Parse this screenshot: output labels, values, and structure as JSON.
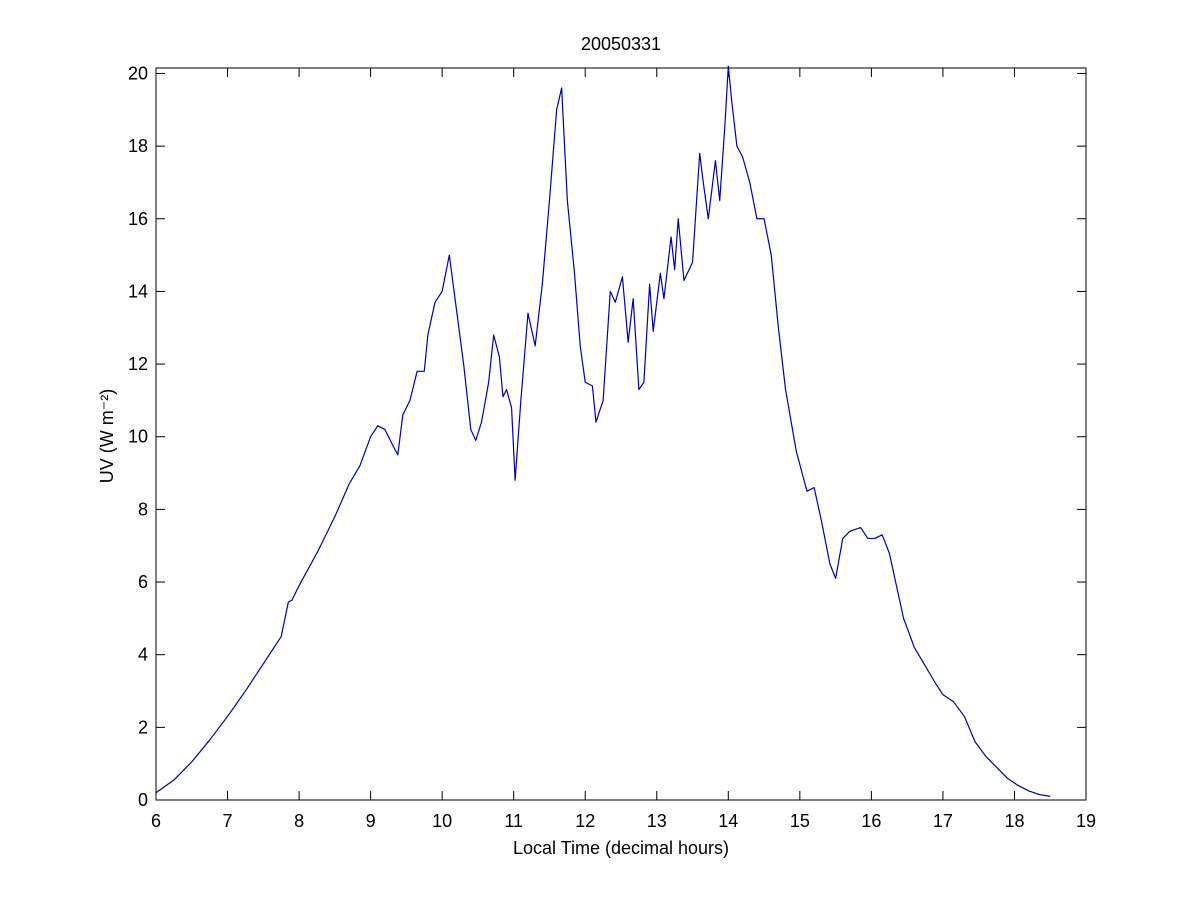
{
  "chart_data": {
    "type": "line",
    "title": "20050331",
    "x_label": "Local Time (decimal hours)",
    "y_label": "UV (W m⁻²)",
    "xlim": [
      6,
      19
    ],
    "ylim": [
      0,
      20.15
    ],
    "xticks": [
      6,
      7,
      8,
      9,
      10,
      11,
      12,
      13,
      14,
      15,
      16,
      17,
      18,
      19
    ],
    "yticks": [
      0,
      2,
      4,
      6,
      8,
      10,
      12,
      14,
      16,
      18,
      20
    ],
    "grid": false,
    "series": [
      {
        "color": "#0000aa",
        "x": [
          6.0,
          6.25,
          6.5,
          6.75,
          7.0,
          7.25,
          7.5,
          7.75,
          7.85,
          7.9,
          8.0,
          8.25,
          8.5,
          8.7,
          8.85,
          9.0,
          9.1,
          9.2,
          9.3,
          9.38,
          9.45,
          9.55,
          9.65,
          9.75,
          9.8,
          9.9,
          10.0,
          10.1,
          10.2,
          10.3,
          10.4,
          10.47,
          10.55,
          10.65,
          10.72,
          10.8,
          10.85,
          10.9,
          10.97,
          11.02,
          11.1,
          11.2,
          11.3,
          11.4,
          11.5,
          11.6,
          11.67,
          11.75,
          11.85,
          11.93,
          12.0,
          12.1,
          12.15,
          12.25,
          12.35,
          12.42,
          12.52,
          12.6,
          12.67,
          12.75,
          12.82,
          12.9,
          12.95,
          13.05,
          13.1,
          13.2,
          13.25,
          13.3,
          13.38,
          13.5,
          13.6,
          13.65,
          13.72,
          13.82,
          13.88,
          13.95,
          14.0,
          14.05,
          14.12,
          14.2,
          14.3,
          14.4,
          14.5,
          14.6,
          14.7,
          14.8,
          14.95,
          15.1,
          15.2,
          15.3,
          15.42,
          15.5,
          15.6,
          15.7,
          15.85,
          15.95,
          16.05,
          16.15,
          16.25,
          16.45,
          16.6,
          16.75,
          16.9,
          17.0,
          17.15,
          17.3,
          17.45,
          17.6,
          17.75,
          17.9,
          18.05,
          18.2,
          18.35,
          18.5
        ],
        "values": [
          0.2,
          0.55,
          1.05,
          1.65,
          2.3,
          3.0,
          3.75,
          4.5,
          5.45,
          5.5,
          5.9,
          6.8,
          7.8,
          8.7,
          9.2,
          10.0,
          10.3,
          10.2,
          9.8,
          9.5,
          10.6,
          11.0,
          11.8,
          11.8,
          12.8,
          13.7,
          14.0,
          15.0,
          13.5,
          12.0,
          10.2,
          9.9,
          10.4,
          11.5,
          12.8,
          12.2,
          11.1,
          11.3,
          10.8,
          8.8,
          11.0,
          13.4,
          12.5,
          14.2,
          16.5,
          19.0,
          19.6,
          16.5,
          14.5,
          12.5,
          11.5,
          11.4,
          10.4,
          11.0,
          14.0,
          13.7,
          14.4,
          12.6,
          13.8,
          11.3,
          11.5,
          14.2,
          12.9,
          14.5,
          13.8,
          15.5,
          14.6,
          16.0,
          14.3,
          14.8,
          17.8,
          17.0,
          16.0,
          17.6,
          16.5,
          18.5,
          20.2,
          19.2,
          18.0,
          17.7,
          17.0,
          16.0,
          16.0,
          15.0,
          13.0,
          11.3,
          9.6,
          8.5,
          8.6,
          7.7,
          6.5,
          6.1,
          7.2,
          7.4,
          7.5,
          7.2,
          7.2,
          7.3,
          6.8,
          5.0,
          4.2,
          3.7,
          3.2,
          2.9,
          2.7,
          2.3,
          1.6,
          1.2,
          0.9,
          0.6,
          0.4,
          0.25,
          0.15,
          0.1
        ]
      }
    ]
  }
}
